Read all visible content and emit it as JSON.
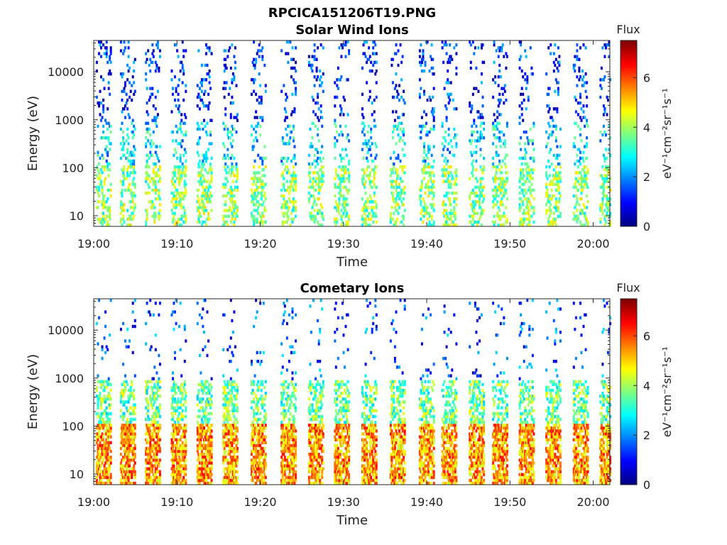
{
  "figure": {
    "title": "RPCICA151206T19.PNG"
  },
  "colors": {
    "axis": "#262626",
    "background": "#ffffff",
    "colormap": "jet"
  },
  "chart_data": [
    {
      "type": "heatmap",
      "title": "Solar Wind Ions",
      "xlabel": "Time",
      "ylabel": "Energy (eV)",
      "x_ticks": [
        "19:00",
        "19:10",
        "19:20",
        "19:30",
        "19:40",
        "19:50",
        "20:00"
      ],
      "x_range_minutes": [
        0,
        62
      ],
      "y_scale": "log",
      "y_range": [
        6,
        45000
      ],
      "y_ticks": [
        {
          "value": 10,
          "label": "10"
        },
        {
          "value": 100,
          "label": "100"
        },
        {
          "value": 1000,
          "label": "1000"
        },
        {
          "value": 10000,
          "label": "10000"
        }
      ],
      "colorbar": {
        "title": "Flux",
        "units": "eV⁻¹cm⁻²sr⁻¹s⁻¹",
        "range": [
          0,
          7.5
        ],
        "ticks": [
          "0",
          "2",
          "4",
          "6"
        ]
      },
      "sweep_minutes": [
        0.0,
        2.9,
        5.9,
        9.0,
        12.1,
        15.2,
        18.6,
        22.2,
        25.5,
        28.6,
        31.9,
        35.3,
        38.8,
        41.5,
        44.8,
        47.6,
        50.8,
        54.0,
        57.3,
        60.5
      ],
      "flux_levels": {
        "low_energy": 3.8,
        "mid_energy": 2.6,
        "high_energy": 1.2
      }
    },
    {
      "type": "heatmap",
      "title": "Cometary Ions",
      "xlabel": "Time",
      "ylabel": "Energy (eV)",
      "x_ticks": [
        "19:00",
        "19:10",
        "19:20",
        "19:30",
        "19:40",
        "19:50",
        "20:00"
      ],
      "x_range_minutes": [
        0,
        62
      ],
      "y_scale": "log",
      "y_range": [
        6,
        45000
      ],
      "y_ticks": [
        {
          "value": 10,
          "label": "10"
        },
        {
          "value": 100,
          "label": "100"
        },
        {
          "value": 1000,
          "label": "1000"
        },
        {
          "value": 10000,
          "label": "10000"
        }
      ],
      "colorbar": {
        "title": "Flux",
        "units": "eV⁻¹cm⁻²sr⁻¹s⁻¹",
        "range": [
          0,
          7.5
        ],
        "ticks": [
          "0",
          "2",
          "4",
          "6"
        ]
      },
      "sweep_minutes": [
        0.0,
        2.9,
        5.9,
        9.0,
        12.1,
        15.2,
        18.6,
        22.2,
        25.5,
        28.6,
        31.9,
        35.3,
        38.8,
        41.5,
        44.8,
        47.6,
        50.8,
        54.0,
        57.3,
        60.5
      ],
      "flux_levels": {
        "low_energy": 5.4,
        "mid_energy": 3.6,
        "high_energy": 1.5
      }
    }
  ]
}
